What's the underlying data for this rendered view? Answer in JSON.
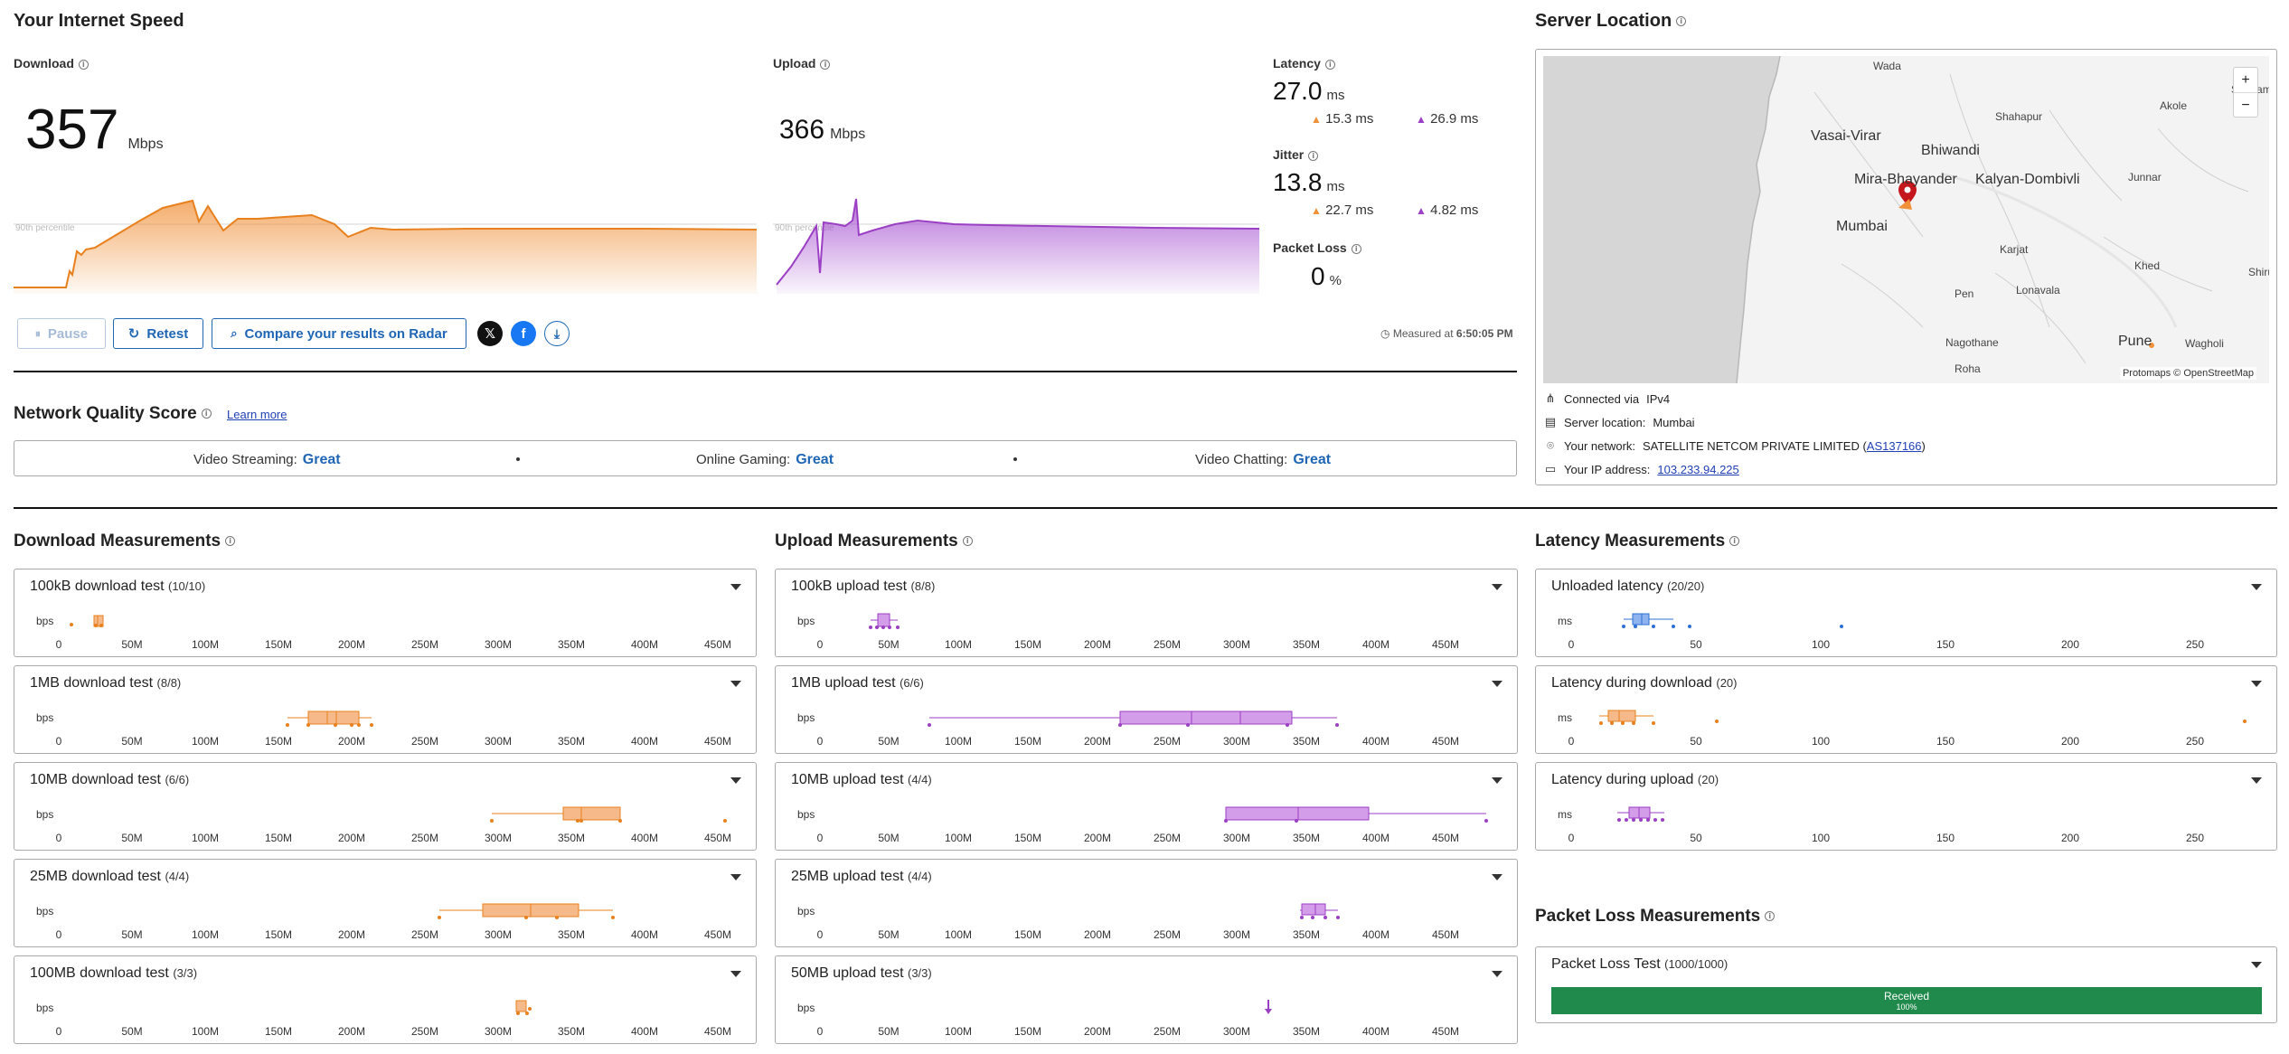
{
  "page_title": "Your Internet Speed",
  "download": {
    "label": "Download",
    "value": "357",
    "unit": "Mbps",
    "percentile_label": "90th percentile",
    "color": "#f0913a"
  },
  "upload": {
    "label": "Upload",
    "value": "366",
    "unit": "Mbps",
    "percentile_label": "90th percentile",
    "color": "#9b3fc4"
  },
  "latency": {
    "label": "Latency",
    "value": "27.0",
    "unit": "ms",
    "down": "15.3 ms",
    "up": "26.9 ms"
  },
  "jitter": {
    "label": "Jitter",
    "value": "13.8",
    "unit": "ms",
    "down": "22.7 ms",
    "up": "4.82 ms"
  },
  "packet_loss": {
    "label": "Packet Loss",
    "value": "0",
    "unit": "%"
  },
  "buttons": {
    "pause": "Pause",
    "retest": "Retest",
    "compare": "Compare your results on Radar"
  },
  "share": {
    "x_icon": "x-logo-icon",
    "facebook_icon": "facebook-icon",
    "download_icon": "download-icon"
  },
  "measured_at": {
    "label": "Measured at",
    "time": "6:50:05 PM"
  },
  "network_quality": {
    "title": "Network Quality Score",
    "learn_more": "Learn more",
    "items": [
      {
        "label": "Video Streaming:",
        "value": "Great"
      },
      {
        "label": "Online Gaming:",
        "value": "Great"
      },
      {
        "label": "Video Chatting:",
        "value": "Great"
      }
    ]
  },
  "server": {
    "title": "Server Location",
    "map_attribution": "Protomaps © OpenStreetMap",
    "map_labels": [
      "Wada",
      "Sangamn",
      "Shahapur",
      "Akole",
      "Vasai-Virar",
      "Bhiwandi",
      "Mira-Bhayander",
      "Kalyan-Dombivli",
      "Junnar",
      "Mumbai",
      "Karjat",
      "Khed",
      "Shirur",
      "Pen",
      "Lonavala",
      "Nagothane",
      "Pune",
      "Wagholi",
      "Roha"
    ],
    "zoom_in": "+",
    "zoom_out": "−",
    "connected_label": "Connected via",
    "connected_value": "IPv4",
    "location_label": "Server location:",
    "location_value": "Mumbai",
    "network_label": "Your network:",
    "network_value": "SATELLITE NETCOM PRIVATE LIMITED (",
    "network_asn": "AS137166",
    "network_close": ")",
    "ip_label": "Your IP address:",
    "ip_value": "103.233.94.225"
  },
  "download_measurements": {
    "title": "Download Measurements",
    "unit": "bps",
    "ticks": [
      "0",
      "50M",
      "100M",
      "150M",
      "200M",
      "250M",
      "300M",
      "350M",
      "400M",
      "450M"
    ],
    "tests": [
      {
        "name": "100kB download test",
        "count": "(10/10)"
      },
      {
        "name": "1MB download test",
        "count": "(8/8)"
      },
      {
        "name": "10MB download test",
        "count": "(6/6)"
      },
      {
        "name": "25MB download test",
        "count": "(4/4)"
      },
      {
        "name": "100MB download test",
        "count": "(3/3)"
      }
    ]
  },
  "upload_measurements": {
    "title": "Upload Measurements",
    "unit": "bps",
    "ticks": [
      "0",
      "50M",
      "100M",
      "150M",
      "200M",
      "250M",
      "300M",
      "350M",
      "400M",
      "450M"
    ],
    "tests": [
      {
        "name": "100kB upload test",
        "count": "(8/8)"
      },
      {
        "name": "1MB upload test",
        "count": "(6/6)"
      },
      {
        "name": "10MB upload test",
        "count": "(4/4)"
      },
      {
        "name": "25MB upload test",
        "count": "(4/4)"
      },
      {
        "name": "50MB upload test",
        "count": "(3/3)"
      }
    ]
  },
  "latency_measurements": {
    "title": "Latency Measurements",
    "unit": "ms",
    "ticks": [
      "0",
      "50",
      "100",
      "150",
      "200",
      "250"
    ],
    "tests": [
      {
        "name": "Unloaded latency",
        "count": "(20/20)"
      },
      {
        "name": "Latency during download",
        "count": "(20)"
      },
      {
        "name": "Latency during upload",
        "count": "(20)"
      }
    ]
  },
  "packet_loss_measurements": {
    "title": "Packet Loss Measurements",
    "test_name": "Packet Loss Test",
    "count": "(1000/1000)",
    "bar_label": "Received",
    "bar_pct": "100%",
    "received_fraction": 1.0,
    "color": "#1f8a4c"
  },
  "colors": {
    "download": "#f0913a",
    "upload": "#9b3fc4",
    "latency": "#2d6fd6",
    "accent": "#1f66b5"
  }
}
